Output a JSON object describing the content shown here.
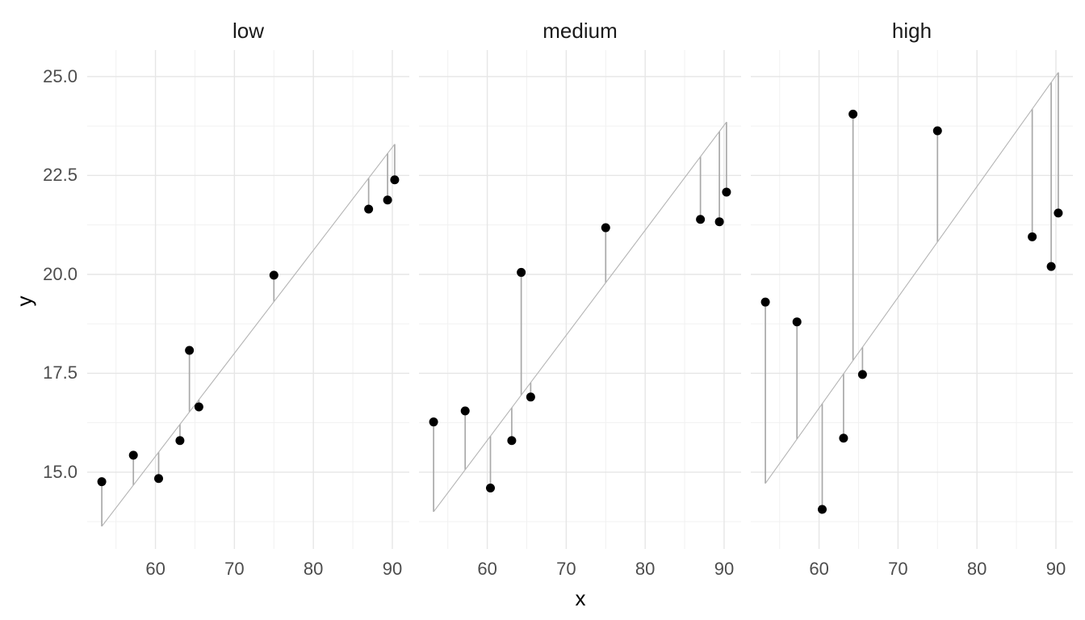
{
  "figure": {
    "x_axis_title": "x",
    "y_axis_title": "y"
  },
  "chart_data": {
    "type": "scatter",
    "subtype": "faceted scatter with per-facet least-squares fit line and vertical residual segments",
    "title": "",
    "xlabel": "x",
    "ylabel": "y",
    "legend": "none",
    "grid": "major and minor, light gray on white",
    "facets": [
      "low",
      "medium",
      "high"
    ],
    "x": [
      53.2,
      57.2,
      60.4,
      63.1,
      64.3,
      65.5,
      75.0,
      87.0,
      89.4,
      90.3
    ],
    "panels": [
      {
        "label": "low",
        "y": [
          14.76,
          15.43,
          14.84,
          15.8,
          18.08,
          16.65,
          19.98,
          21.65,
          21.88,
          22.39
        ],
        "fit": {
          "slope": 0.2604,
          "intercept": -0.222
        }
      },
      {
        "label": "medium",
        "y": [
          16.27,
          16.55,
          14.6,
          15.8,
          20.05,
          16.9,
          21.18,
          21.39,
          21.33,
          22.08
        ],
        "fit": {
          "slope": 0.2655,
          "intercept": -0.124
        }
      },
      {
        "label": "high",
        "y": [
          19.3,
          18.8,
          14.06,
          15.86,
          24.05,
          17.47,
          23.63,
          20.95,
          20.2,
          21.55
        ],
        "fit": {
          "slope": 0.28,
          "intercept": -0.18
        }
      }
    ],
    "fit_line_x_range": [
      53.2,
      90.3
    ],
    "x_ticks": [
      {
        "value": 60,
        "label": "60"
      },
      {
        "value": 70,
        "label": "70"
      },
      {
        "value": 80,
        "label": "80"
      },
      {
        "value": 90,
        "label": "90"
      }
    ],
    "y_ticks": [
      {
        "value": 15.0,
        "label": "15.0"
      },
      {
        "value": 17.5,
        "label": "17.5"
      },
      {
        "value": 20.0,
        "label": "20.0"
      },
      {
        "value": 22.5,
        "label": "22.5"
      },
      {
        "value": 25.0,
        "label": "25.0"
      }
    ],
    "x_minor": [
      55,
      65,
      75,
      85
    ],
    "y_minor": [
      13.75,
      16.25,
      18.75,
      21.25,
      23.75
    ],
    "xlim": [
      51.35,
      92.15
    ],
    "ylim": [
      13.06,
      25.67
    ],
    "colors": {
      "background": "#FFFFFF",
      "point": "#000000",
      "residual_segment": "#A9A9A9",
      "fit_line": "#B4B4B4",
      "grid_major": "#E6E6E6",
      "grid_minor": "#F1F1F1",
      "axis_text": "#4D4D4D",
      "strip_text": "#1A1A1A",
      "axis_title": "#000000"
    }
  }
}
